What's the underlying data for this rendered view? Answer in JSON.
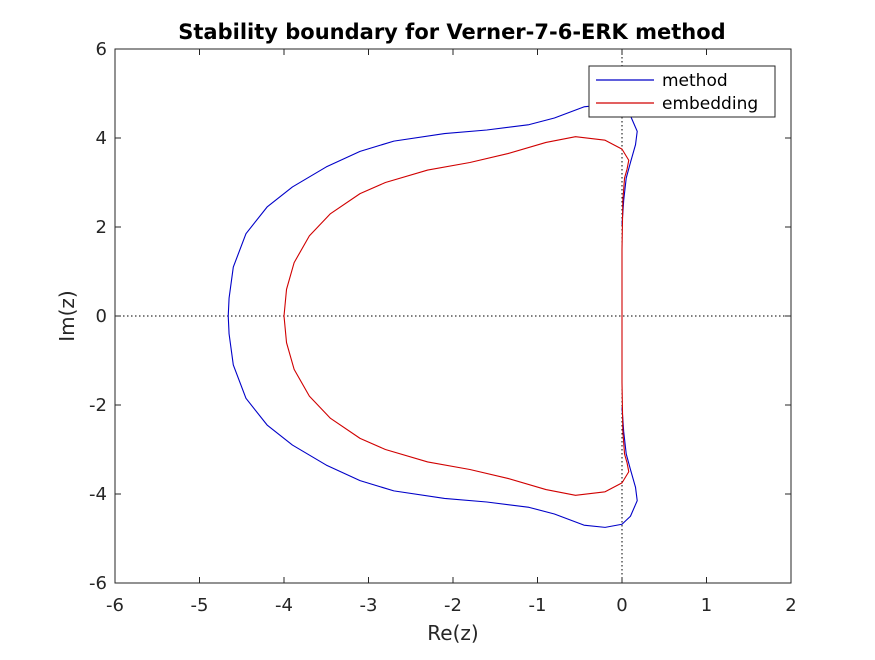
{
  "chart_data": {
    "type": "line",
    "title": "Stability boundary for Verner-7-6-ERK method",
    "xlabel": "Re(z)",
    "ylabel": "Im(z)",
    "xlim": [
      -6,
      2
    ],
    "ylim": [
      -6,
      6
    ],
    "xticks": [
      -6,
      -5,
      -4,
      -3,
      -2,
      -1,
      0,
      1,
      2
    ],
    "yticks": [
      -6,
      -4,
      -2,
      0,
      2,
      4,
      6
    ],
    "grid": false,
    "reference_lines": {
      "x0": "dotted",
      "y0": "dotted"
    },
    "legend": {
      "placement": "top-right"
    },
    "series": [
      {
        "name": "method",
        "color": "#0000c8",
        "upper_half": [
          [
            0.0,
            2.05
          ],
          [
            0.02,
            2.6
          ],
          [
            0.05,
            3.1
          ],
          [
            0.1,
            3.45
          ],
          [
            0.16,
            3.85
          ],
          [
            0.18,
            4.15
          ],
          [
            0.1,
            4.5
          ],
          [
            0.0,
            4.68
          ],
          [
            -0.2,
            4.75
          ],
          [
            -0.45,
            4.7
          ],
          [
            -0.8,
            4.45
          ],
          [
            -1.1,
            4.3
          ],
          [
            -1.6,
            4.18
          ],
          [
            -2.1,
            4.1
          ],
          [
            -2.7,
            3.93
          ],
          [
            -3.1,
            3.7
          ],
          [
            -3.5,
            3.35
          ],
          [
            -3.9,
            2.9
          ],
          [
            -4.2,
            2.45
          ],
          [
            -4.45,
            1.85
          ],
          [
            -4.6,
            1.1
          ],
          [
            -4.65,
            0.4
          ],
          [
            -4.66,
            0.0
          ]
        ]
      },
      {
        "name": "embedding",
        "color": "#d00000",
        "upper_half": [
          [
            0.0,
            0.0
          ],
          [
            0.0,
            1.5
          ],
          [
            0.01,
            2.6
          ],
          [
            0.03,
            3.1
          ],
          [
            0.06,
            3.3
          ],
          [
            0.08,
            3.5
          ],
          [
            0.0,
            3.75
          ],
          [
            -0.2,
            3.95
          ],
          [
            -0.55,
            4.03
          ],
          [
            -0.9,
            3.9
          ],
          [
            -1.35,
            3.65
          ],
          [
            -1.8,
            3.45
          ],
          [
            -2.3,
            3.28
          ],
          [
            -2.8,
            3.0
          ],
          [
            -3.1,
            2.75
          ],
          [
            -3.45,
            2.3
          ],
          [
            -3.7,
            1.8
          ],
          [
            -3.88,
            1.2
          ],
          [
            -3.97,
            0.6
          ],
          [
            -4.0,
            0.0
          ]
        ]
      }
    ]
  }
}
